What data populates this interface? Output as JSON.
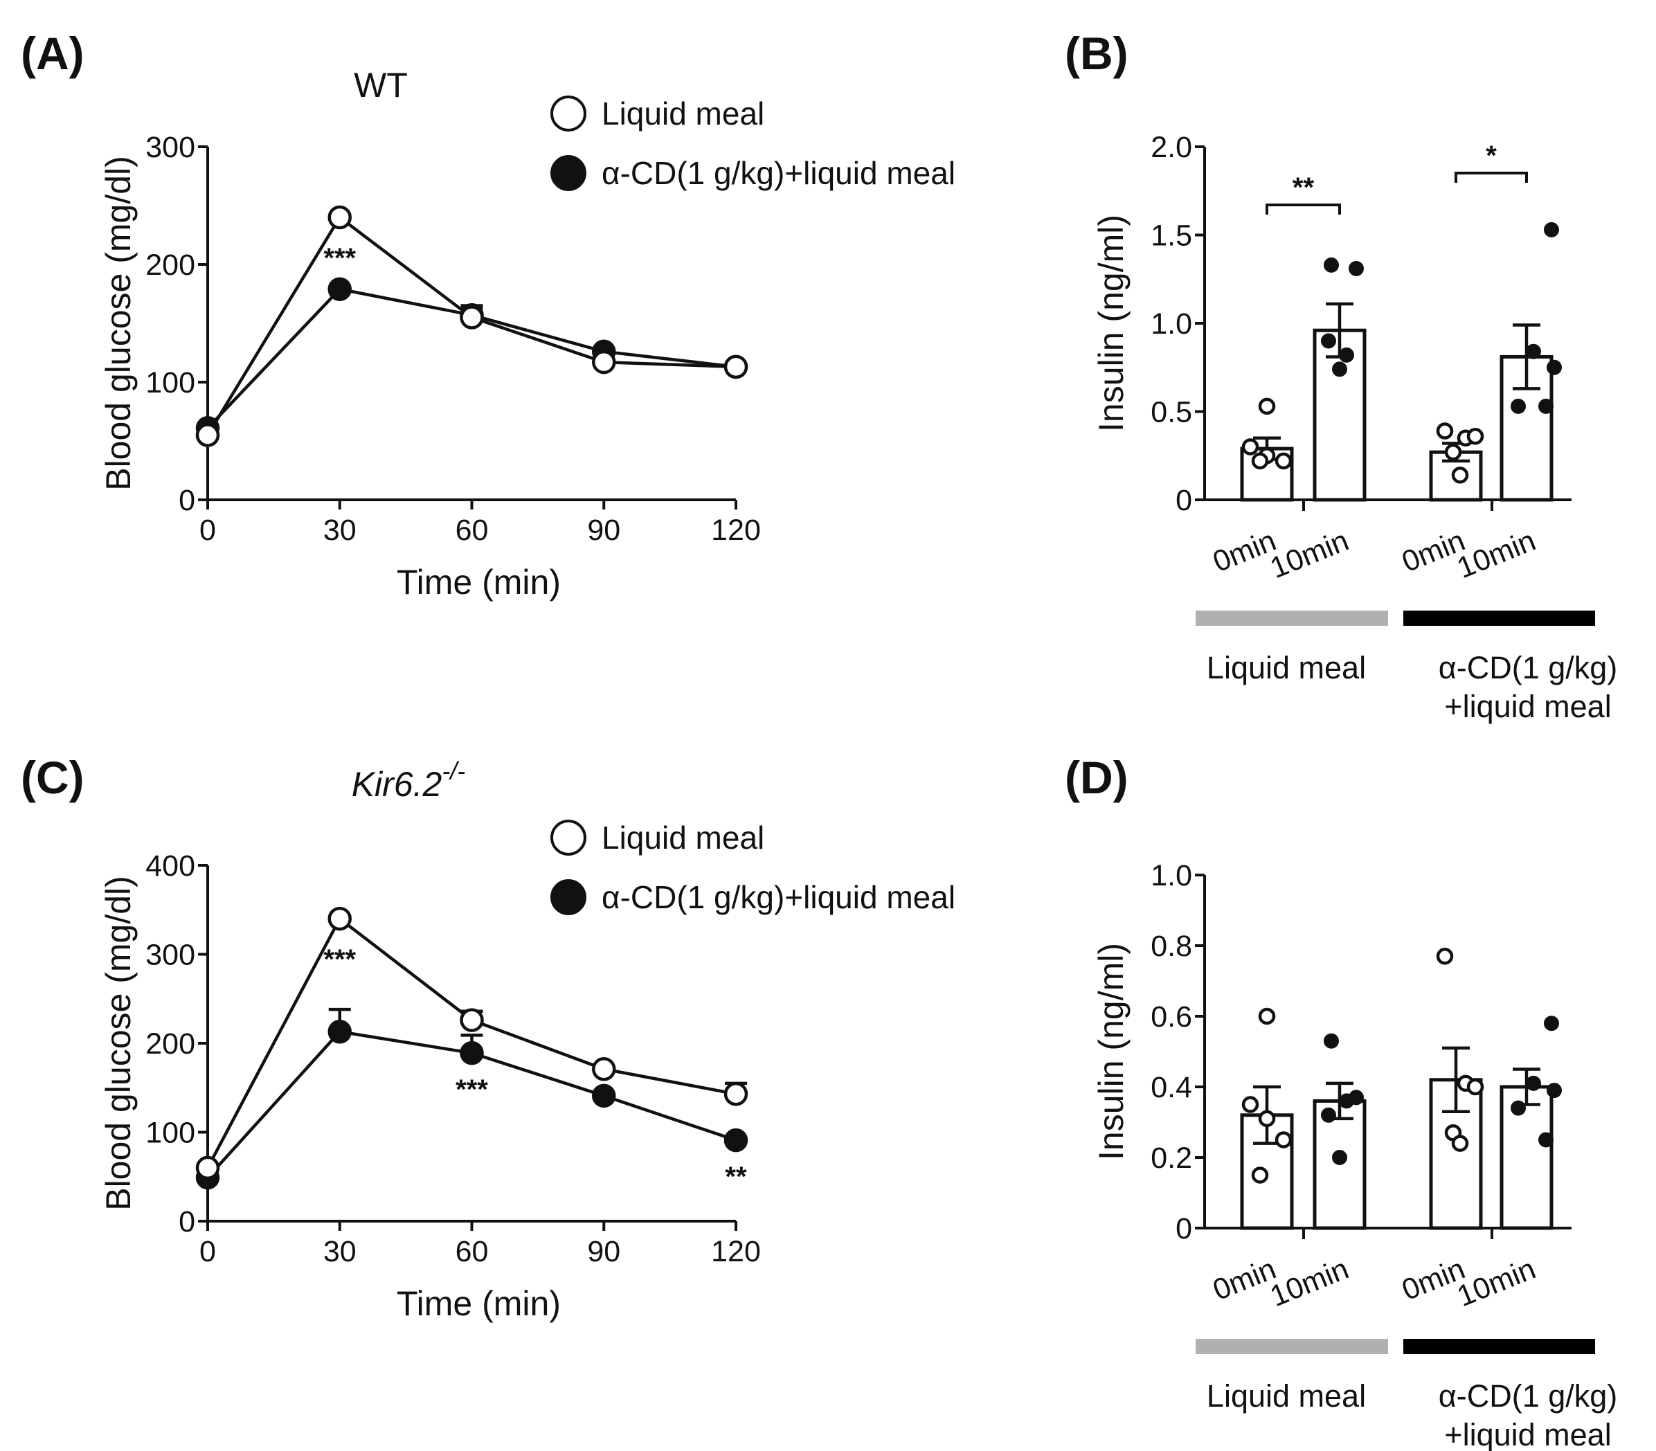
{
  "colors": {
    "ink": "#111111",
    "open_marker": "#ffffff",
    "liquid_meal_bar": "#b0b0b0",
    "acd_bar": "#000000"
  },
  "chart_data": [
    {
      "panel": "(A)",
      "type": "line",
      "title": "WT",
      "xlabel": "Time (min)",
      "ylabel": "Blood glucose (mg/dl)",
      "x": [
        0,
        30,
        60,
        90,
        120
      ],
      "xticks": [
        "0",
        "30",
        "60",
        "90",
        "120"
      ],
      "ylim": [
        0,
        300
      ],
      "yticks": [
        "0",
        "100",
        "200",
        "300"
      ],
      "legend": [
        "Liquid meal",
        "α-CD(1 g/kg)+liquid meal"
      ],
      "series": [
        {
          "name": "Liquid meal",
          "marker": "open",
          "values": [
            55,
            240,
            155,
            117,
            113
          ],
          "errors": [
            0,
            0,
            8,
            0,
            0
          ]
        },
        {
          "name": "α-CD(1 g/kg)+liquid meal",
          "marker": "filled",
          "values": [
            61,
            179,
            157,
            126,
            113
          ],
          "errors": [
            0,
            0,
            8,
            0,
            0
          ]
        }
      ],
      "annotations": [
        {
          "x": 30,
          "text": "***",
          "position": "below"
        }
      ]
    },
    {
      "panel": "(B)",
      "type": "bar",
      "ylabel": "Insulin (ng/ml)",
      "categories": [
        "0min",
        "10min",
        "0min",
        "10min"
      ],
      "ylim": [
        0,
        2.0
      ],
      "yticks": [
        "0",
        "0.5",
        "1.0",
        "1.5",
        "2.0"
      ],
      "values": [
        0.29,
        0.96,
        0.27,
        0.81
      ],
      "errors": [
        0.06,
        0.15,
        0.05,
        0.18
      ],
      "points": [
        [
          0.53,
          0.3,
          0.25,
          0.22,
          0.22
        ],
        [
          1.33,
          1.31,
          0.82,
          0.9,
          0.74
        ],
        [
          0.39,
          0.35,
          0.36,
          0.27,
          0.14
        ],
        [
          1.53,
          0.84,
          0.75,
          0.53,
          0.53
        ]
      ],
      "point_markers": [
        "open",
        "filled",
        "open",
        "filled"
      ],
      "groups": [
        "Liquid meal",
        "α-CD(1 g/kg)\n+liquid meal"
      ],
      "significance": [
        "**",
        "*"
      ]
    },
    {
      "panel": "(C)",
      "type": "line",
      "title": "Kir6.2",
      "title_superscript": "-/-",
      "xlabel": "Time (min)",
      "ylabel": "Blood glucose (mg/dl)",
      "x": [
        0,
        30,
        60,
        90,
        120
      ],
      "xticks": [
        "0",
        "30",
        "60",
        "90",
        "120"
      ],
      "ylim": [
        0,
        400
      ],
      "yticks": [
        "0",
        "100",
        "200",
        "300",
        "400"
      ],
      "legend": [
        "Liquid meal",
        "α-CD(1 g/kg)+liquid meal"
      ],
      "series": [
        {
          "name": "Liquid meal",
          "marker": "open",
          "values": [
            60,
            340,
            226,
            171,
            143
          ],
          "errors": [
            0,
            0,
            10,
            0,
            12
          ]
        },
        {
          "name": "α-CD(1 g/kg)+liquid meal",
          "marker": "filled",
          "values": [
            49,
            213,
            189,
            141,
            91
          ],
          "errors": [
            0,
            25,
            20,
            0,
            0
          ]
        }
      ],
      "annotations": [
        {
          "x": 30,
          "text": "***",
          "position": "below"
        },
        {
          "x": 60,
          "text": "***",
          "position": "below"
        },
        {
          "x": 120,
          "text": "**",
          "position": "below"
        }
      ]
    },
    {
      "panel": "(D)",
      "type": "bar",
      "ylabel": "Insulin (ng/ml)",
      "categories": [
        "0min",
        "10min",
        "0min",
        "10min"
      ],
      "ylim": [
        0,
        1.0
      ],
      "yticks": [
        "0",
        "0.2",
        "0.4",
        "0.6",
        "0.8",
        "1.0"
      ],
      "values": [
        0.32,
        0.36,
        0.42,
        0.4
      ],
      "errors": [
        0.08,
        0.05,
        0.09,
        0.05
      ],
      "points": [
        [
          0.6,
          0.35,
          0.31,
          0.25,
          0.15
        ],
        [
          0.53,
          0.37,
          0.36,
          0.32,
          0.2
        ],
        [
          0.77,
          0.41,
          0.4,
          0.27,
          0.24
        ],
        [
          0.58,
          0.41,
          0.39,
          0.34,
          0.25
        ]
      ],
      "point_markers": [
        "open",
        "filled",
        "open",
        "filled"
      ],
      "groups": [
        "Liquid meal",
        "α-CD(1 g/kg)\n+liquid meal"
      ],
      "significance": []
    }
  ]
}
